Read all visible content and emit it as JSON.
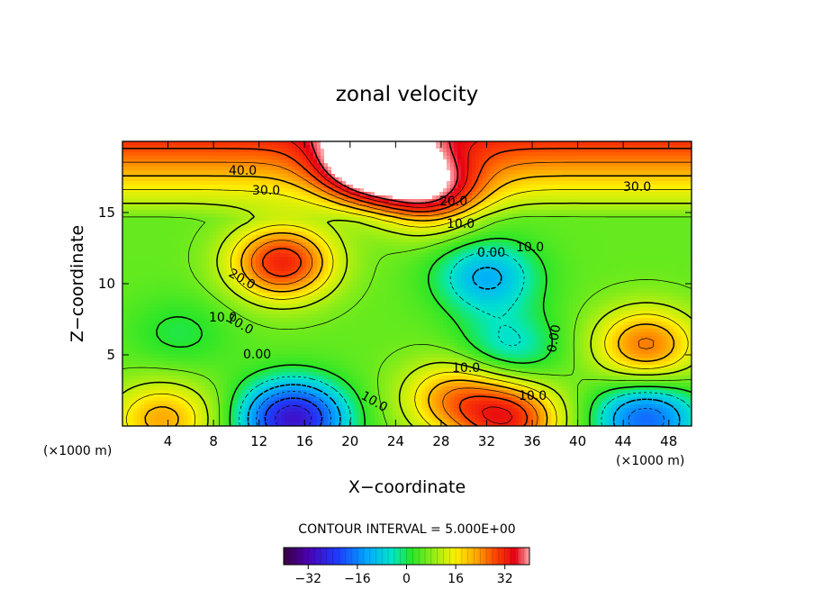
{
  "chart_data": {
    "type": "heatmap",
    "title": "zonal velocity",
    "xlabel": "X−coordinate",
    "ylabel": "Z−coordinate",
    "x_unit": "(×1000 m)",
    "x_unit_right": "(×1000 m)",
    "xlim": [
      0,
      50
    ],
    "ylim": [
      0,
      20
    ],
    "x_ticks": [
      "4",
      "8",
      "12",
      "16",
      "20",
      "24",
      "28",
      "32",
      "36",
      "40",
      "44",
      "48"
    ],
    "y_ticks": [
      "5",
      "10",
      "15"
    ],
    "contour_interval_text": "CONTOUR INTERVAL = 5.000E+00",
    "colorbar": {
      "range": [
        -40,
        40
      ],
      "ticks": [
        "−32",
        "−16",
        "0",
        "16",
        "32"
      ]
    },
    "features": [
      {
        "x": 14,
        "z": 11.5,
        "value": 30
      },
      {
        "x": 15,
        "z": 0.5,
        "value": -33
      },
      {
        "x": 32,
        "z": 10.5,
        "value": -15
      },
      {
        "x": 46,
        "z": 5.7,
        "value": 22
      },
      {
        "x": 34,
        "z": 5.5,
        "value": -10
      },
      {
        "x": 46,
        "z": 0.5,
        "value": -22
      },
      {
        "x": 3.5,
        "z": 0.5,
        "value": 18
      },
      {
        "x": 34,
        "z": 0.5,
        "value": 28
      },
      {
        "x": 29,
        "z": 2,
        "value": 18
      },
      {
        "x": 5,
        "z": 6.5,
        "value": -5
      },
      {
        "x": 27,
        "z": 16.5,
        "value": 28
      },
      {
        "x": 22,
        "z": 18.5,
        "value": 44
      }
    ],
    "contour_labels": [
      "40.0",
      "30.0",
      "20.0",
      "10.0",
      "0.00",
      "10.0",
      "0.00",
      "10.0",
      "30.0",
      "20.0",
      "10.0",
      "0.00",
      "10.0",
      "10.0",
      "10.0"
    ]
  }
}
